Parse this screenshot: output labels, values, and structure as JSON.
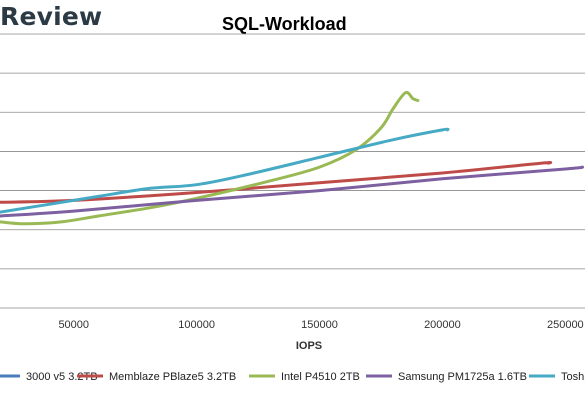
{
  "brand": {
    "text": "Review"
  },
  "chart_data": {
    "type": "line",
    "title": "SQL-Workload",
    "xlabel": "IOPS",
    "ylabel": "",
    "xlim": [
      20000,
      258000
    ],
    "ylim": [
      0,
      14
    ],
    "xticks": [
      50000,
      100000,
      150000,
      200000,
      250000
    ],
    "x_tick_labels": [
      "50000",
      "100000",
      "150000",
      "200000",
      "250000"
    ],
    "grid": true,
    "legend_position": "bottom",
    "series": [
      {
        "name": "3000 v5 3.2TB",
        "color": "#4a7ebb",
        "x": [],
        "y": []
      },
      {
        "name": "Memblaze PBlaze5 3.2TB",
        "color": "#be4b48",
        "x": [
          20000,
          50000,
          100000,
          150000,
          200000,
          240000,
          243000
        ],
        "y": [
          5.4,
          5.5,
          5.9,
          6.4,
          6.9,
          7.4,
          7.4
        ]
      },
      {
        "name": "Intel P4510 2TB",
        "color": "#98b954",
        "x": [
          20000,
          30000,
          45000,
          60000,
          80000,
          100000,
          130000,
          150000,
          165000,
          175000,
          180000,
          185000,
          188000,
          190000
        ],
        "y": [
          4.4,
          4.3,
          4.4,
          4.7,
          5.1,
          5.6,
          6.5,
          7.2,
          8.1,
          9.2,
          10.2,
          11.0,
          10.7,
          10.6
        ]
      },
      {
        "name": "Samsung PM1725a 1.6TB",
        "color": "#7d60a0",
        "x": [
          20000,
          50000,
          100000,
          150000,
          200000,
          250000,
          257000
        ],
        "y": [
          4.7,
          4.95,
          5.5,
          6.0,
          6.6,
          7.1,
          7.2
        ]
      },
      {
        "name": "Toshiba",
        "color": "#46aac5",
        "x": [
          20000,
          40000,
          60000,
          80000,
          100000,
          120000,
          150000,
          180000,
          200000,
          202000
        ],
        "y": [
          4.9,
          5.3,
          5.7,
          6.1,
          6.3,
          6.8,
          7.7,
          8.6,
          9.1,
          9.1
        ]
      }
    ]
  }
}
